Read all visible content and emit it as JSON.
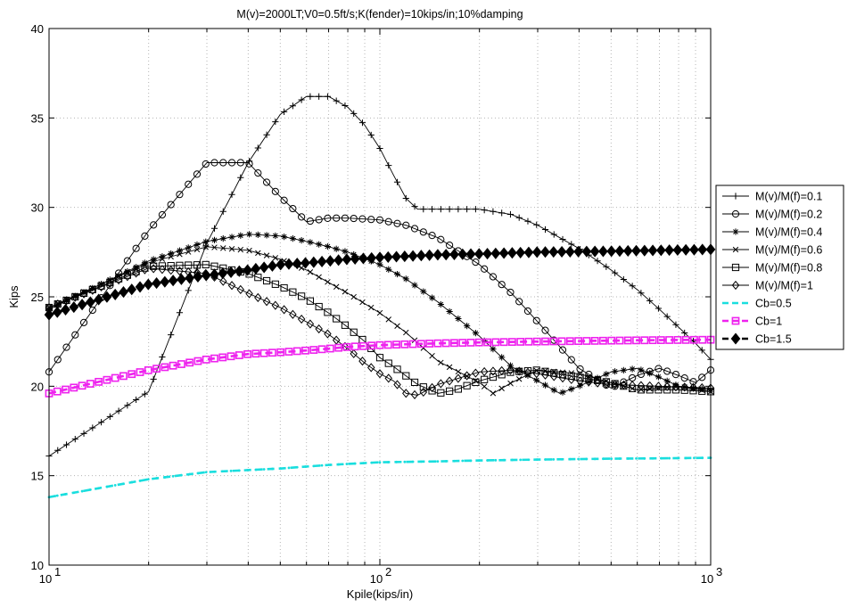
{
  "chart_data": {
    "type": "line",
    "title": "M(v)=2000LT;V0=0.5ft/s;K(fender)=10kips/in;10%damping",
    "xlabel": "Kpile(kips/in)",
    "ylabel": "Kips",
    "xscale": "log",
    "xlim": [
      10,
      1000
    ],
    "ylim": [
      10,
      40
    ],
    "grid": true,
    "legend_position": "right",
    "x_ticks": [
      {
        "value": 10,
        "base": "10",
        "exp": "1"
      },
      {
        "value": 100,
        "base": "10",
        "exp": "2"
      },
      {
        "value": 1000,
        "base": "10",
        "exp": "3"
      }
    ],
    "y_ticks": [
      "10",
      "15",
      "20",
      "25",
      "30",
      "35",
      "40"
    ],
    "series": [
      {
        "name": "M(v)/M(f)=0.1",
        "color": "#000000",
        "marker": "plus",
        "style": "solid",
        "points": [
          [
            10,
            16.1
          ],
          [
            20,
            19.7
          ],
          [
            30,
            28.0
          ],
          [
            40,
            32.5
          ],
          [
            50,
            35.2
          ],
          [
            60,
            36.2
          ],
          [
            70,
            36.2
          ],
          [
            80,
            35.6
          ],
          [
            90,
            34.6
          ],
          [
            100,
            33.3
          ],
          [
            110,
            31.8
          ],
          [
            120,
            30.5
          ],
          [
            130,
            29.9
          ],
          [
            150,
            29.9
          ],
          [
            200,
            29.9
          ],
          [
            250,
            29.6
          ],
          [
            300,
            29.0
          ],
          [
            400,
            27.7
          ],
          [
            500,
            26.5
          ],
          [
            600,
            25.4
          ],
          [
            700,
            24.3
          ],
          [
            800,
            23.3
          ],
          [
            900,
            22.4
          ],
          [
            1000,
            21.5
          ]
        ]
      },
      {
        "name": "M(v)/M(f)=0.2",
        "color": "#000000",
        "marker": "circle",
        "style": "solid",
        "points": [
          [
            10,
            20.8
          ],
          [
            20,
            28.7
          ],
          [
            30,
            32.5
          ],
          [
            40,
            32.5
          ],
          [
            50,
            30.6
          ],
          [
            60,
            29.2
          ],
          [
            70,
            29.4
          ],
          [
            80,
            29.4
          ],
          [
            100,
            29.3
          ],
          [
            120,
            29.0
          ],
          [
            150,
            28.3
          ],
          [
            200,
            26.8
          ],
          [
            250,
            25.2
          ],
          [
            300,
            23.6
          ],
          [
            400,
            21.0
          ],
          [
            500,
            19.9
          ],
          [
            600,
            20.6
          ],
          [
            700,
            21.0
          ],
          [
            800,
            20.6
          ],
          [
            900,
            20.2
          ],
          [
            1000,
            20.9
          ]
        ]
      },
      {
        "name": "M(v)/M(f)=0.4",
        "color": "#000000",
        "marker": "asterisk",
        "style": "solid",
        "points": [
          [
            10,
            24.3
          ],
          [
            20,
            27.0
          ],
          [
            30,
            28.1
          ],
          [
            40,
            28.5
          ],
          [
            50,
            28.4
          ],
          [
            60,
            28.1
          ],
          [
            70,
            27.8
          ],
          [
            80,
            27.5
          ],
          [
            100,
            26.8
          ],
          [
            120,
            26.0
          ],
          [
            150,
            24.7
          ],
          [
            200,
            22.8
          ],
          [
            250,
            21.1
          ],
          [
            300,
            20.3
          ],
          [
            350,
            19.6
          ],
          [
            400,
            20.0
          ],
          [
            500,
            20.8
          ],
          [
            600,
            21.0
          ],
          [
            700,
            20.5
          ],
          [
            800,
            20.0
          ],
          [
            1000,
            19.8
          ]
        ]
      },
      {
        "name": "M(v)/M(f)=0.6",
        "color": "#000000",
        "marker": "x",
        "style": "solid",
        "points": [
          [
            10,
            24.4
          ],
          [
            20,
            26.9
          ],
          [
            30,
            27.8
          ],
          [
            40,
            27.6
          ],
          [
            50,
            27.1
          ],
          [
            60,
            26.5
          ],
          [
            70,
            25.8
          ],
          [
            80,
            25.2
          ],
          [
            100,
            24.1
          ],
          [
            120,
            23.0
          ],
          [
            150,
            21.4
          ],
          [
            200,
            20.2
          ],
          [
            220,
            19.6
          ],
          [
            250,
            20.2
          ],
          [
            300,
            20.9
          ],
          [
            400,
            20.7
          ],
          [
            500,
            20.2
          ],
          [
            600,
            19.8
          ],
          [
            800,
            20.0
          ],
          [
            1000,
            19.7
          ]
        ]
      },
      {
        "name": "M(v)/M(f)=0.8",
        "color": "#000000",
        "marker": "square",
        "style": "solid",
        "points": [
          [
            10,
            24.4
          ],
          [
            20,
            26.7
          ],
          [
            30,
            26.8
          ],
          [
            40,
            26.3
          ],
          [
            50,
            25.6
          ],
          [
            60,
            24.9
          ],
          [
            70,
            24.1
          ],
          [
            80,
            23.3
          ],
          [
            90,
            22.5
          ],
          [
            100,
            21.6
          ],
          [
            110,
            21.1
          ],
          [
            130,
            20.1
          ],
          [
            150,
            19.6
          ],
          [
            170,
            19.8
          ],
          [
            200,
            20.3
          ],
          [
            250,
            20.8
          ],
          [
            300,
            20.9
          ],
          [
            400,
            20.5
          ],
          [
            500,
            20.2
          ],
          [
            600,
            19.8
          ],
          [
            800,
            19.8
          ],
          [
            1000,
            19.7
          ]
        ]
      },
      {
        "name": "M(v)/M(f)=1",
        "color": "#000000",
        "marker": "diamond",
        "style": "solid",
        "points": [
          [
            10,
            24.4
          ],
          [
            20,
            26.6
          ],
          [
            30,
            26.3
          ],
          [
            40,
            25.2
          ],
          [
            50,
            24.4
          ],
          [
            60,
            23.6
          ],
          [
            70,
            22.9
          ],
          [
            80,
            22.1
          ],
          [
            90,
            21.3
          ],
          [
            100,
            20.7
          ],
          [
            110,
            20.3
          ],
          [
            120,
            19.6
          ],
          [
            130,
            19.5
          ],
          [
            150,
            20.1
          ],
          [
            200,
            20.8
          ],
          [
            250,
            20.9
          ],
          [
            300,
            20.7
          ],
          [
            400,
            20.3
          ],
          [
            500,
            20.1
          ],
          [
            700,
            20.0
          ],
          [
            1000,
            19.9
          ]
        ]
      },
      {
        "name": "Cb=0.5",
        "color": "#19dede",
        "marker": "none",
        "style": "dashed",
        "points": [
          [
            10,
            13.8
          ],
          [
            20,
            14.8
          ],
          [
            30,
            15.2
          ],
          [
            50,
            15.4
          ],
          [
            70,
            15.6
          ],
          [
            100,
            15.75
          ],
          [
            150,
            15.8
          ],
          [
            200,
            15.85
          ],
          [
            300,
            15.9
          ],
          [
            500,
            15.95
          ],
          [
            700,
            15.97
          ],
          [
            1000,
            16.0
          ]
        ]
      },
      {
        "name": "Cb=1",
        "color": "#ee22ee",
        "marker": "square",
        "style": "dashed",
        "points": [
          [
            10,
            19.6
          ],
          [
            20,
            20.9
          ],
          [
            30,
            21.5
          ],
          [
            40,
            21.8
          ],
          [
            50,
            21.9
          ],
          [
            60,
            22.0
          ],
          [
            70,
            22.1
          ],
          [
            80,
            22.2
          ],
          [
            90,
            22.25
          ],
          [
            100,
            22.3
          ],
          [
            150,
            22.4
          ],
          [
            200,
            22.45
          ],
          [
            300,
            22.5
          ],
          [
            500,
            22.55
          ],
          [
            700,
            22.58
          ],
          [
            1000,
            22.6
          ]
        ]
      },
      {
        "name": "Cb=1.5",
        "color": "#000000",
        "marker": "diamond-filled",
        "style": "dashed",
        "points": [
          [
            10,
            24.0
          ],
          [
            20,
            25.7
          ],
          [
            30,
            26.2
          ],
          [
            40,
            26.5
          ],
          [
            50,
            26.8
          ],
          [
            60,
            26.9
          ],
          [
            70,
            27.0
          ],
          [
            80,
            27.1
          ],
          [
            90,
            27.15
          ],
          [
            100,
            27.2
          ],
          [
            150,
            27.35
          ],
          [
            200,
            27.4
          ],
          [
            300,
            27.5
          ],
          [
            500,
            27.55
          ],
          [
            700,
            27.6
          ],
          [
            1000,
            27.65
          ]
        ]
      }
    ]
  }
}
